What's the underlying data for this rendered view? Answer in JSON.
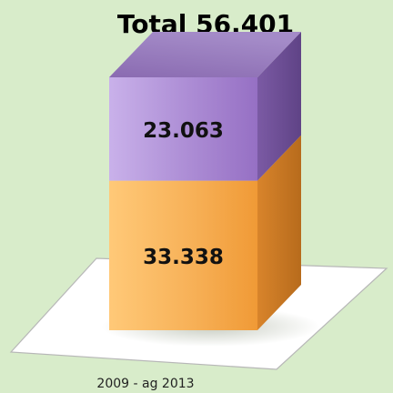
{
  "chart_data": {
    "type": "bar",
    "title": "Total 56.401",
    "categories": [
      "2009 - ag 2013"
    ],
    "series": [
      {
        "values": [
          33338
        ],
        "label": "33.338",
        "color": "#f6b45c"
      },
      {
        "values": [
          23063
        ],
        "label": "23.063",
        "color": "#a07cc6"
      }
    ],
    "stacked": true,
    "three_d": true,
    "axes_visible": false,
    "grid": false,
    "legend": "none"
  },
  "colors": {
    "background": "#d8ecca",
    "floor": "#ffffff",
    "segment_bottom": "#f6b45c",
    "segment_top": "#a07cc6"
  }
}
